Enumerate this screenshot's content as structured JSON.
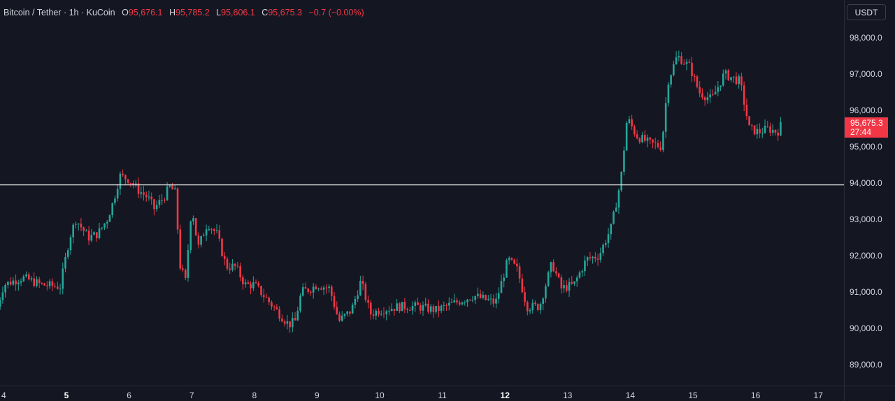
{
  "header": {
    "pair": "Bitcoin / Tether",
    "interval": "1h",
    "exchange": "KuCoin",
    "open_label": "O",
    "open": "95,676.1",
    "high_label": "H",
    "high": "95,785.2",
    "low_label": "L",
    "low": "95,606.1",
    "close_label": "C",
    "close": "95,675.3",
    "change": "−0.7 (−0.00%)"
  },
  "axis": {
    "unit": "USDT",
    "last_price": "95,675.3",
    "countdown": "27:44"
  },
  "colors": {
    "background": "#141722",
    "up": "#26a69a",
    "down": "#f23645",
    "grid_text": "#d1d4dc",
    "line": "#e6e6e6"
  },
  "chart_data": {
    "type": "candlestick",
    "y_ticks": [
      "89,000.0",
      "90,000.0",
      "91,000.0",
      "92,000.0",
      "93,000.0",
      "94,000.0",
      "95,000.0",
      "96,000.0",
      "97,000.0",
      "98,000.0"
    ],
    "y_tick_values": [
      89000,
      90000,
      91000,
      92000,
      93000,
      94000,
      95000,
      96000,
      97000,
      98000
    ],
    "x_ticks": [
      "4",
      "5",
      "6",
      "7",
      "8",
      "9",
      "10",
      "11",
      "12",
      "13",
      "14",
      "15",
      "16",
      "17"
    ],
    "x_tick_bold": [
      "5",
      "12"
    ],
    "ylim": [
      88500,
      99100
    ],
    "horizontal_line": 93950,
    "last_price_value": 95675.3,
    "anchors": [
      {
        "day": 3.9,
        "price": 90600
      },
      {
        "day": 4.0,
        "price": 91200
      },
      {
        "day": 4.3,
        "price": 91400
      },
      {
        "day": 4.6,
        "price": 91200
      },
      {
        "day": 4.9,
        "price": 91150
      },
      {
        "day": 5.05,
        "price": 92500
      },
      {
        "day": 5.15,
        "price": 93000
      },
      {
        "day": 5.35,
        "price": 92500
      },
      {
        "day": 5.5,
        "price": 92600
      },
      {
        "day": 5.65,
        "price": 93000
      },
      {
        "day": 5.75,
        "price": 93500
      },
      {
        "day": 5.85,
        "price": 94200
      },
      {
        "day": 6.0,
        "price": 94100
      },
      {
        "day": 6.15,
        "price": 93800
      },
      {
        "day": 6.3,
        "price": 93600
      },
      {
        "day": 6.4,
        "price": 93300
      },
      {
        "day": 6.55,
        "price": 93600
      },
      {
        "day": 6.65,
        "price": 93900
      },
      {
        "day": 6.75,
        "price": 93700
      },
      {
        "day": 6.8,
        "price": 91800
      },
      {
        "day": 6.9,
        "price": 91300
      },
      {
        "day": 7.0,
        "price": 93400
      },
      {
        "day": 7.1,
        "price": 92200
      },
      {
        "day": 7.25,
        "price": 92900
      },
      {
        "day": 7.4,
        "price": 92600
      },
      {
        "day": 7.55,
        "price": 91700
      },
      {
        "day": 7.7,
        "price": 91700
      },
      {
        "day": 7.85,
        "price": 91200
      },
      {
        "day": 8.0,
        "price": 91200
      },
      {
        "day": 8.15,
        "price": 90900
      },
      {
        "day": 8.3,
        "price": 90600
      },
      {
        "day": 8.45,
        "price": 90300
      },
      {
        "day": 8.55,
        "price": 90100
      },
      {
        "day": 8.65,
        "price": 90200
      },
      {
        "day": 8.75,
        "price": 91000
      },
      {
        "day": 8.9,
        "price": 91100
      },
      {
        "day": 9.0,
        "price": 91200
      },
      {
        "day": 9.2,
        "price": 91100
      },
      {
        "day": 9.35,
        "price": 90200
      },
      {
        "day": 9.55,
        "price": 90500
      },
      {
        "day": 9.7,
        "price": 91300
      },
      {
        "day": 9.85,
        "price": 90400
      },
      {
        "day": 10.0,
        "price": 90500
      },
      {
        "day": 10.3,
        "price": 90600
      },
      {
        "day": 10.6,
        "price": 90600
      },
      {
        "day": 10.9,
        "price": 90500
      },
      {
        "day": 11.2,
        "price": 90700
      },
      {
        "day": 11.5,
        "price": 90900
      },
      {
        "day": 11.85,
        "price": 90700
      },
      {
        "day": 12.05,
        "price": 91900
      },
      {
        "day": 12.2,
        "price": 91600
      },
      {
        "day": 12.35,
        "price": 90600
      },
      {
        "day": 12.55,
        "price": 90600
      },
      {
        "day": 12.75,
        "price": 91800
      },
      {
        "day": 12.9,
        "price": 91100
      },
      {
        "day": 13.1,
        "price": 91200
      },
      {
        "day": 13.3,
        "price": 91900
      },
      {
        "day": 13.5,
        "price": 92000
      },
      {
        "day": 13.7,
        "price": 92800
      },
      {
        "day": 13.85,
        "price": 94100
      },
      {
        "day": 13.95,
        "price": 95800
      },
      {
        "day": 14.1,
        "price": 95300
      },
      {
        "day": 14.3,
        "price": 95100
      },
      {
        "day": 14.5,
        "price": 95000
      },
      {
        "day": 14.6,
        "price": 96800
      },
      {
        "day": 14.75,
        "price": 97500
      },
      {
        "day": 14.95,
        "price": 97200
      },
      {
        "day": 15.1,
        "price": 96500
      },
      {
        "day": 15.3,
        "price": 96300
      },
      {
        "day": 15.5,
        "price": 97000
      },
      {
        "day": 15.75,
        "price": 96800
      },
      {
        "day": 15.9,
        "price": 95500
      },
      {
        "day": 16.05,
        "price": 95400
      },
      {
        "day": 16.2,
        "price": 95500
      },
      {
        "day": 16.35,
        "price": 95400
      },
      {
        "day": 16.42,
        "price": 95675
      }
    ]
  }
}
